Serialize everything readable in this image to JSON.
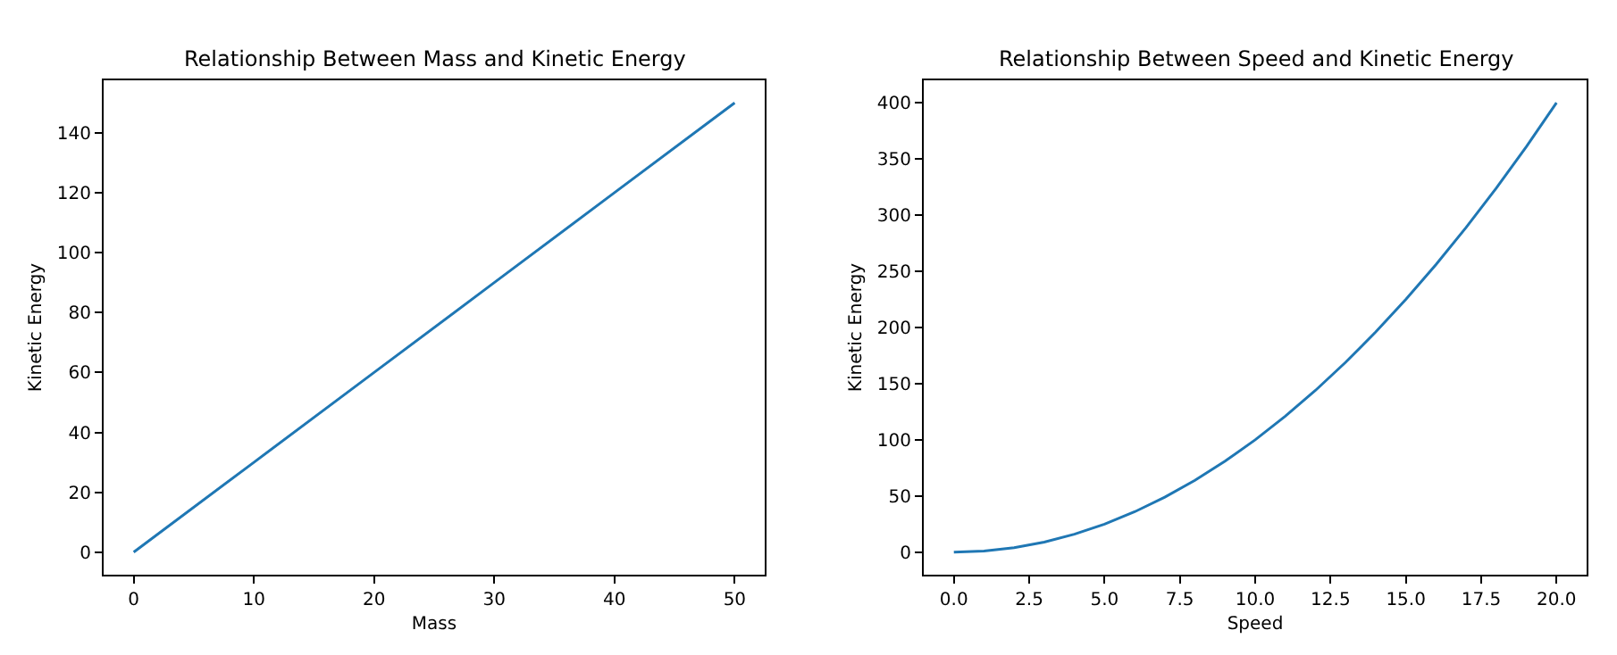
{
  "chart_data": [
    {
      "type": "line",
      "title": "Relationship Between Mass and Kinetic Energy",
      "xlabel": "Mass",
      "ylabel": "Kinetic Energy",
      "x": [
        0,
        10,
        20,
        30,
        40,
        50
      ],
      "series": [
        {
          "color": "#1f77b4",
          "values": [
            0,
            30,
            60,
            90,
            120,
            150
          ]
        }
      ],
      "xlim": [
        -2.5,
        52.5
      ],
      "ylim": [
        -7.5,
        157.5
      ],
      "xticks": [
        0,
        10,
        20,
        30,
        40,
        50
      ],
      "yticks": [
        0,
        20,
        40,
        60,
        80,
        100,
        120,
        140
      ]
    },
    {
      "type": "line",
      "title": "Relationship Between Speed and Kinetic Energy",
      "xlabel": "Speed",
      "ylabel": "Kinetic Energy",
      "x": [
        0,
        1,
        2,
        3,
        4,
        5,
        6,
        7,
        8,
        9,
        10,
        11,
        12,
        13,
        14,
        15,
        16,
        17,
        18,
        19,
        20
      ],
      "series": [
        {
          "color": "#1f77b4",
          "values": [
            0,
            1,
            4,
            9,
            16,
            25,
            36,
            49,
            64,
            81,
            100,
            121,
            144,
            169,
            196,
            225,
            256,
            289,
            324,
            361,
            400
          ]
        }
      ],
      "xlim": [
        -1,
        21
      ],
      "ylim": [
        -20,
        420
      ],
      "xticks": [
        {
          "value": 0,
          "label": "0.0"
        },
        {
          "value": 2.5,
          "label": "2.5"
        },
        {
          "value": 5,
          "label": "5.0"
        },
        {
          "value": 7.5,
          "label": "7.5"
        },
        {
          "value": 10,
          "label": "10.0"
        },
        {
          "value": 12.5,
          "label": "12.5"
        },
        {
          "value": 15,
          "label": "15.0"
        },
        {
          "value": 17.5,
          "label": "17.5"
        },
        {
          "value": 20,
          "label": "20.0"
        }
      ],
      "yticks": [
        0,
        50,
        100,
        150,
        200,
        250,
        300,
        350,
        400
      ]
    }
  ]
}
